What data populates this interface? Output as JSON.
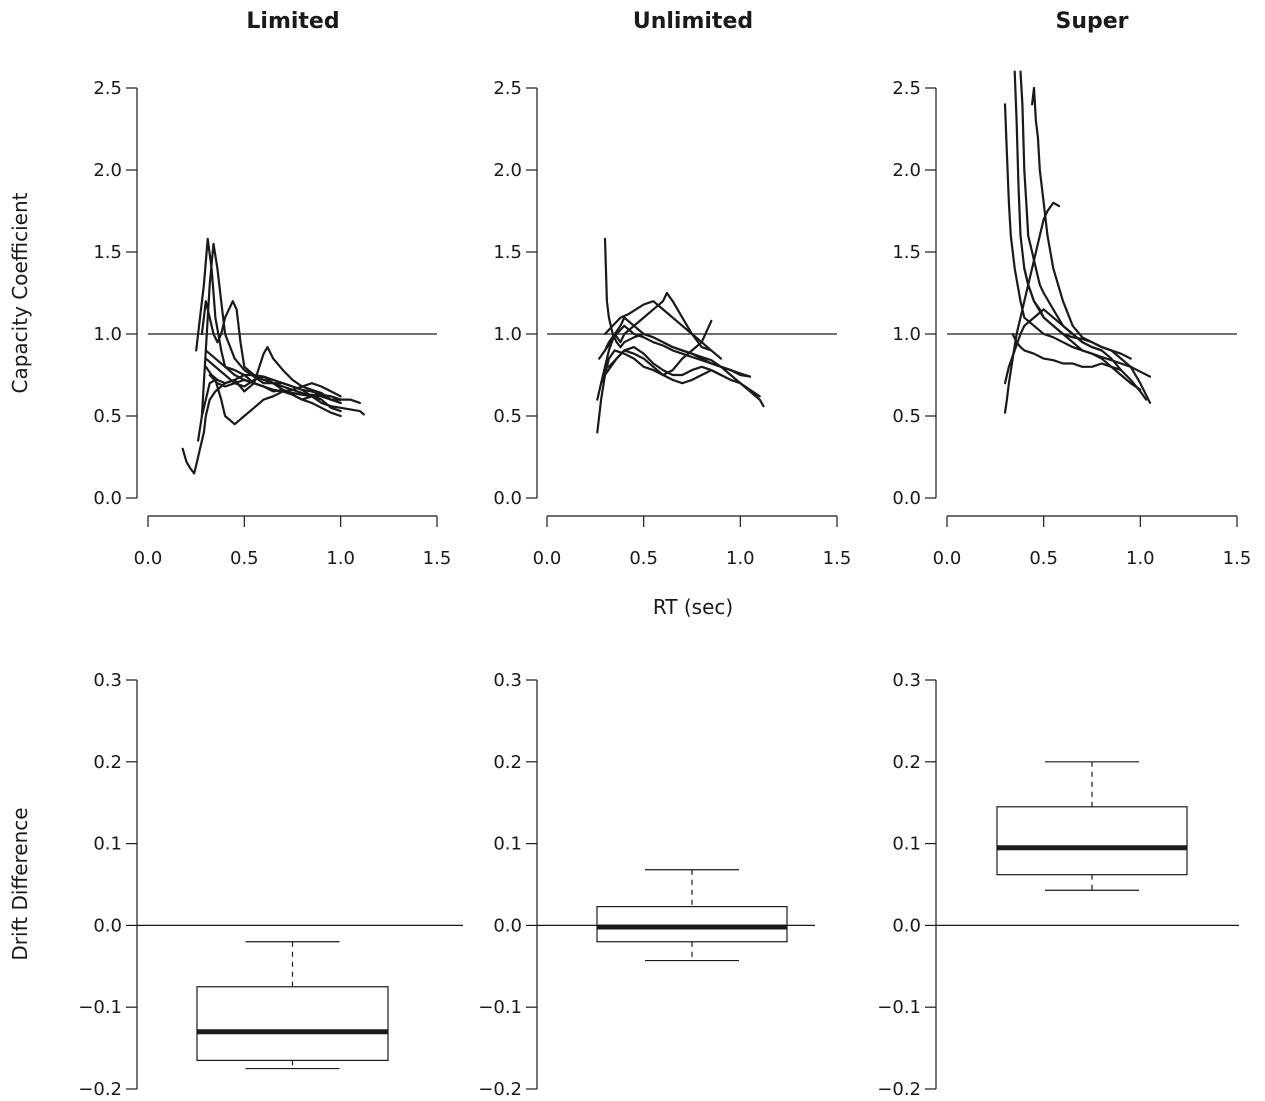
{
  "figure": {
    "xlabel_shared": "RT (sec)",
    "top_ylabel": "Capacity Coefficient",
    "bottom_ylabel": "Drift Difference"
  },
  "chart_data": [
    {
      "type": "line",
      "title": "Limited",
      "xlim": [
        0,
        1.5
      ],
      "ylim": [
        0,
        2.5
      ],
      "xticks": [
        "0.0",
        "0.5",
        "1.0",
        "1.5"
      ],
      "yticks": [
        "0.0",
        "0.5",
        "1.0",
        "1.5",
        "2.0",
        "2.5"
      ],
      "reference_y": 1.0,
      "series": [
        {
          "x": [
            0.18,
            0.2,
            0.22,
            0.24,
            0.25,
            0.27,
            0.29,
            0.3,
            0.32,
            0.35,
            0.4,
            0.45,
            0.5,
            0.55,
            0.6,
            0.65,
            0.7,
            0.75,
            0.8,
            0.85,
            0.9,
            0.95,
            1.0
          ],
          "y": [
            0.3,
            0.22,
            0.18,
            0.15,
            0.2,
            0.3,
            0.4,
            0.5,
            0.6,
            0.65,
            0.7,
            0.72,
            0.75,
            0.7,
            0.68,
            0.65,
            0.66,
            0.64,
            0.63,
            0.62,
            0.64,
            0.6,
            0.58
          ]
        },
        {
          "x": [
            0.25,
            0.27,
            0.29,
            0.31,
            0.33,
            0.35,
            0.38,
            0.4,
            0.45,
            0.5,
            0.55,
            0.6,
            0.65,
            0.7,
            0.75,
            0.8,
            0.85,
            0.9,
            0.95,
            1.0,
            1.05,
            1.1,
            1.12
          ],
          "y": [
            0.9,
            1.1,
            1.3,
            1.58,
            1.4,
            1.1,
            0.9,
            0.8,
            0.75,
            0.72,
            0.7,
            0.68,
            0.66,
            0.65,
            0.63,
            0.6,
            0.62,
            0.58,
            0.56,
            0.55,
            0.54,
            0.53,
            0.51
          ]
        },
        {
          "x": [
            0.26,
            0.28,
            0.3,
            0.32,
            0.34,
            0.36,
            0.38,
            0.4,
            0.45,
            0.5,
            0.55,
            0.6,
            0.65,
            0.7,
            0.75,
            0.8,
            0.85,
            0.9,
            0.95,
            1.0
          ],
          "y": [
            0.35,
            0.5,
            0.9,
            1.3,
            1.55,
            1.4,
            1.2,
            1.0,
            0.85,
            0.78,
            0.74,
            0.7,
            0.7,
            0.68,
            0.66,
            0.64,
            0.62,
            0.62,
            0.6,
            0.58
          ]
        },
        {
          "x": [
            0.28,
            0.3,
            0.32,
            0.34,
            0.36,
            0.38,
            0.4,
            0.42,
            0.44,
            0.46,
            0.48,
            0.5,
            0.55,
            0.6,
            0.65,
            0.7,
            0.75,
            0.8,
            0.85,
            0.9,
            0.95,
            1.0,
            1.05,
            1.1
          ],
          "y": [
            1.0,
            1.2,
            1.1,
            1.0,
            0.95,
            1.0,
            1.1,
            1.15,
            1.2,
            1.15,
            0.95,
            0.8,
            0.75,
            0.72,
            0.7,
            0.7,
            0.68,
            0.66,
            0.65,
            0.63,
            0.62,
            0.6,
            0.6,
            0.58
          ]
        },
        {
          "x": [
            0.28,
            0.3,
            0.32,
            0.35,
            0.38,
            0.4,
            0.45,
            0.5,
            0.55,
            0.6,
            0.65,
            0.7,
            0.75,
            0.8,
            0.85,
            0.9,
            0.95,
            1.0
          ],
          "y": [
            0.5,
            0.6,
            0.7,
            0.72,
            0.6,
            0.5,
            0.45,
            0.5,
            0.55,
            0.6,
            0.62,
            0.65,
            0.66,
            0.68,
            0.7,
            0.68,
            0.65,
            0.62
          ]
        },
        {
          "x": [
            0.3,
            0.33,
            0.36,
            0.4,
            0.45,
            0.5,
            0.55,
            0.6,
            0.62,
            0.65,
            0.7,
            0.75,
            0.8,
            0.85,
            0.9,
            0.95,
            1.0
          ],
          "y": [
            0.8,
            0.75,
            0.72,
            0.7,
            0.72,
            0.65,
            0.7,
            0.88,
            0.92,
            0.85,
            0.78,
            0.72,
            0.68,
            0.66,
            0.64,
            0.6,
            0.6
          ]
        },
        {
          "x": [
            0.3,
            0.35,
            0.4,
            0.45,
            0.5,
            0.55,
            0.6,
            0.65,
            0.7,
            0.75,
            0.8,
            0.85,
            0.9,
            0.95,
            1.0
          ],
          "y": [
            0.85,
            0.8,
            0.75,
            0.7,
            0.68,
            0.72,
            0.74,
            0.7,
            0.66,
            0.63,
            0.6,
            0.58,
            0.55,
            0.52,
            0.5
          ]
        },
        {
          "x": [
            0.32,
            0.36,
            0.4,
            0.45,
            0.5,
            0.55,
            0.6,
            0.65,
            0.7,
            0.75,
            0.8,
            0.85,
            0.9,
            0.95,
            1.0
          ],
          "y": [
            0.75,
            0.7,
            0.68,
            0.7,
            0.72,
            0.7,
            0.68,
            0.66,
            0.65,
            0.64,
            0.63,
            0.63,
            0.62,
            0.6,
            0.6
          ]
        },
        {
          "x": [
            0.3,
            0.35,
            0.4,
            0.45,
            0.5,
            0.55,
            0.6,
            0.65,
            0.7,
            0.75,
            0.8,
            0.85,
            0.9,
            0.95,
            1.0
          ],
          "y": [
            0.9,
            0.85,
            0.8,
            0.78,
            0.75,
            0.75,
            0.74,
            0.72,
            0.7,
            0.68,
            0.66,
            0.62,
            0.6,
            0.55,
            0.53
          ]
        }
      ]
    },
    {
      "type": "line",
      "title": "Unlimited",
      "xlim": [
        0,
        1.5
      ],
      "ylim": [
        0,
        2.5
      ],
      "xticks": [
        "0.0",
        "0.5",
        "1.0",
        "1.5"
      ],
      "yticks": [
        "0.0",
        "0.5",
        "1.0",
        "1.5",
        "2.0",
        "2.5"
      ],
      "reference_y": 1.0,
      "series": [
        {
          "x": [
            0.26,
            0.28,
            0.3,
            0.32,
            0.35,
            0.4,
            0.45,
            0.5,
            0.55,
            0.6,
            0.65,
            0.7,
            0.75,
            0.8,
            0.85
          ],
          "y": [
            0.4,
            0.6,
            0.75,
            0.85,
            0.9,
            0.88,
            0.85,
            0.8,
            0.78,
            0.75,
            0.78,
            0.85,
            0.9,
            0.95,
            1.08
          ]
        },
        {
          "x": [
            0.3,
            0.31,
            0.32,
            0.34,
            0.36,
            0.38,
            0.4,
            0.45,
            0.5,
            0.55,
            0.6,
            0.65,
            0.7,
            0.75,
            0.8,
            0.85,
            0.9,
            0.95,
            1.0,
            1.05,
            1.1,
            1.12
          ],
          "y": [
            1.58,
            1.2,
            1.1,
            1.0,
            0.95,
            0.92,
            0.95,
            0.98,
            1.0,
            0.98,
            0.95,
            0.92,
            0.9,
            0.88,
            0.85,
            0.82,
            0.8,
            0.75,
            0.7,
            0.65,
            0.6,
            0.56
          ]
        },
        {
          "x": [
            0.26,
            0.28,
            0.3,
            0.32,
            0.35,
            0.38,
            0.4,
            0.45,
            0.5,
            0.55,
            0.6,
            0.62,
            0.65,
            0.7,
            0.75,
            0.8,
            0.85
          ],
          "y": [
            0.6,
            0.7,
            0.8,
            0.9,
            1.0,
            0.95,
            1.0,
            1.05,
            1.1,
            1.15,
            1.2,
            1.25,
            1.2,
            1.1,
            1.0,
            0.92,
            0.9
          ]
        },
        {
          "x": [
            0.27,
            0.3,
            0.32,
            0.35,
            0.38,
            0.4,
            0.45,
            0.5,
            0.55,
            0.6,
            0.65,
            0.7,
            0.75,
            0.8,
            0.85,
            0.9,
            0.95,
            1.0,
            1.05
          ],
          "y": [
            0.85,
            0.9,
            0.95,
            1.0,
            1.05,
            1.1,
            1.05,
            1.0,
            0.98,
            0.95,
            0.92,
            0.9,
            0.88,
            0.86,
            0.84,
            0.8,
            0.78,
            0.76,
            0.74
          ]
        },
        {
          "x": [
            0.28,
            0.3,
            0.33,
            0.36,
            0.4,
            0.45,
            0.5,
            0.55,
            0.6,
            0.65,
            0.7,
            0.75,
            0.8,
            0.85,
            0.9
          ],
          "y": [
            0.7,
            0.75,
            0.8,
            0.85,
            0.9,
            0.92,
            0.88,
            0.82,
            0.78,
            0.75,
            0.75,
            0.78,
            0.8,
            0.78,
            0.75
          ]
        },
        {
          "x": [
            0.3,
            0.33,
            0.36,
            0.4,
            0.45,
            0.5,
            0.55,
            0.6,
            0.65,
            0.7,
            0.75,
            0.8,
            0.85,
            0.9,
            0.95,
            1.0,
            1.05
          ],
          "y": [
            0.9,
            0.95,
            1.0,
            1.05,
            1.0,
            0.98,
            0.95,
            0.93,
            0.9,
            0.88,
            0.86,
            0.84,
            0.82,
            0.8,
            0.78,
            0.75,
            0.74
          ]
        },
        {
          "x": [
            0.32,
            0.36,
            0.4,
            0.45,
            0.5,
            0.55,
            0.6,
            0.65,
            0.7,
            0.75,
            0.8,
            0.85,
            0.9,
            0.95,
            1.0,
            1.05,
            1.1
          ],
          "y": [
            0.8,
            0.85,
            0.9,
            0.88,
            0.85,
            0.8,
            0.75,
            0.72,
            0.7,
            0.72,
            0.75,
            0.78,
            0.75,
            0.72,
            0.7,
            0.66,
            0.62
          ]
        },
        {
          "x": [
            0.3,
            0.34,
            0.38,
            0.42,
            0.46,
            0.5,
            0.55,
            0.6,
            0.65,
            0.7,
            0.75,
            0.8,
            0.85,
            0.9
          ],
          "y": [
            1.0,
            1.05,
            1.1,
            1.12,
            1.15,
            1.18,
            1.2,
            1.15,
            1.1,
            1.05,
            1.0,
            0.95,
            0.9,
            0.85
          ]
        }
      ]
    },
    {
      "type": "line",
      "title": "Super",
      "xlim": [
        0,
        1.5
      ],
      "ylim": [
        0,
        2.5
      ],
      "xticks": [
        "0.0",
        "0.5",
        "1.0",
        "1.5"
      ],
      "yticks": [
        "0.0",
        "0.5",
        "1.0",
        "1.5",
        "2.0",
        "2.5"
      ],
      "reference_y": 1.0,
      "series": [
        {
          "x": [
            0.3,
            0.31,
            0.32,
            0.33,
            0.35,
            0.38,
            0.4,
            0.45,
            0.5,
            0.55,
            0.6,
            0.65,
            0.7,
            0.75,
            0.8,
            0.85,
            0.9,
            0.95,
            1.0,
            1.05
          ],
          "y": [
            2.4,
            2.1,
            1.8,
            1.6,
            1.4,
            1.2,
            1.1,
            1.05,
            1.0,
            0.98,
            0.95,
            0.92,
            0.9,
            0.88,
            0.86,
            0.84,
            0.82,
            0.8,
            0.77,
            0.74
          ]
        },
        {
          "x": [
            0.35,
            0.36,
            0.37,
            0.38,
            0.4,
            0.42,
            0.45,
            0.5,
            0.55,
            0.6,
            0.65,
            0.7,
            0.75,
            0.8,
            0.85,
            0.9,
            0.95,
            1.0
          ],
          "y": [
            2.6,
            2.3,
            1.9,
            1.6,
            1.4,
            1.3,
            1.2,
            1.1,
            1.05,
            1.0,
            0.95,
            0.9,
            0.88,
            0.85,
            0.8,
            0.75,
            0.7,
            0.66
          ]
        },
        {
          "x": [
            0.38,
            0.39,
            0.4,
            0.41,
            0.42,
            0.44,
            0.46,
            0.48,
            0.5,
            0.55,
            0.6,
            0.65,
            0.7,
            0.75,
            0.8,
            0.85,
            0.9,
            0.95,
            1.0,
            1.03
          ],
          "y": [
            2.6,
            2.4,
            2.0,
            1.8,
            1.6,
            1.5,
            1.4,
            1.3,
            1.25,
            1.15,
            1.05,
            1.0,
            0.95,
            0.92,
            0.9,
            0.85,
            0.78,
            0.72,
            0.65,
            0.6
          ]
        },
        {
          "x": [
            0.44,
            0.45,
            0.46,
            0.47,
            0.48,
            0.5,
            0.52,
            0.55,
            0.6,
            0.65,
            0.7,
            0.75,
            0.8,
            0.85,
            0.9,
            0.95,
            1.0,
            1.05
          ],
          "y": [
            2.4,
            2.5,
            2.3,
            2.2,
            2.0,
            1.8,
            1.6,
            1.4,
            1.2,
            1.05,
            0.98,
            0.95,
            0.92,
            0.9,
            0.85,
            0.8,
            0.7,
            0.58
          ]
        },
        {
          "x": [
            0.3,
            0.31,
            0.32,
            0.34,
            0.36,
            0.38,
            0.4,
            0.42,
            0.45,
            0.48,
            0.5,
            0.52,
            0.55,
            0.58
          ],
          "y": [
            0.52,
            0.6,
            0.7,
            0.85,
            1.0,
            1.1,
            1.2,
            1.3,
            1.45,
            1.6,
            1.7,
            1.75,
            1.8,
            1.78
          ]
        },
        {
          "x": [
            0.3,
            0.32,
            0.35,
            0.38,
            0.4,
            0.45,
            0.5,
            0.55,
            0.6,
            0.65,
            0.7,
            0.75,
            0.8
          ],
          "y": [
            0.7,
            0.8,
            0.9,
            1.0,
            1.05,
            1.1,
            1.15,
            1.1,
            1.05,
            1.0,
            0.95,
            0.92,
            0.9
          ]
        },
        {
          "x": [
            0.34,
            0.36,
            0.38,
            0.4,
            0.45,
            0.5,
            0.55,
            0.6,
            0.65,
            0.7,
            0.75,
            0.8,
            0.85,
            0.9
          ],
          "y": [
            1.0,
            0.95,
            0.92,
            0.9,
            0.88,
            0.85,
            0.84,
            0.82,
            0.82,
            0.8,
            0.8,
            0.82,
            0.8,
            0.78
          ]
        },
        {
          "x": [
            0.4,
            0.42,
            0.45,
            0.48,
            0.5,
            0.55,
            0.6,
            0.65,
            0.7,
            0.75,
            0.8,
            0.85,
            0.9,
            0.95
          ],
          "y": [
            1.4,
            1.3,
            1.2,
            1.15,
            1.1,
            1.05,
            1.0,
            0.98,
            0.97,
            0.95,
            0.92,
            0.9,
            0.88,
            0.85
          ]
        }
      ]
    },
    {
      "type": "box",
      "title": "",
      "ylim": [
        -0.2,
        0.3
      ],
      "yticks": [
        "−0.2",
        "−0.1",
        "0.0",
        "0.1",
        "0.2",
        "0.3"
      ],
      "reference_y": 0.0,
      "box": {
        "min": -0.175,
        "q1": -0.165,
        "median": -0.13,
        "q3": -0.075,
        "max": -0.02
      }
    },
    {
      "type": "box",
      "title": "",
      "ylim": [
        -0.2,
        0.3
      ],
      "yticks": [
        "−0.2",
        "−0.1",
        "0.0",
        "0.1",
        "0.2",
        "0.3"
      ],
      "reference_y": 0.0,
      "box": {
        "min": -0.043,
        "q1": -0.02,
        "median": -0.002,
        "q3": 0.023,
        "max": 0.068
      }
    },
    {
      "type": "box",
      "title": "",
      "ylim": [
        -0.2,
        0.3
      ],
      "yticks": [
        "−0.2",
        "−0.1",
        "0.0",
        "0.1",
        "0.2",
        "0.3"
      ],
      "reference_y": 0.0,
      "box": {
        "min": 0.043,
        "q1": 0.062,
        "median": 0.095,
        "q3": 0.145,
        "max": 0.2
      }
    }
  ]
}
